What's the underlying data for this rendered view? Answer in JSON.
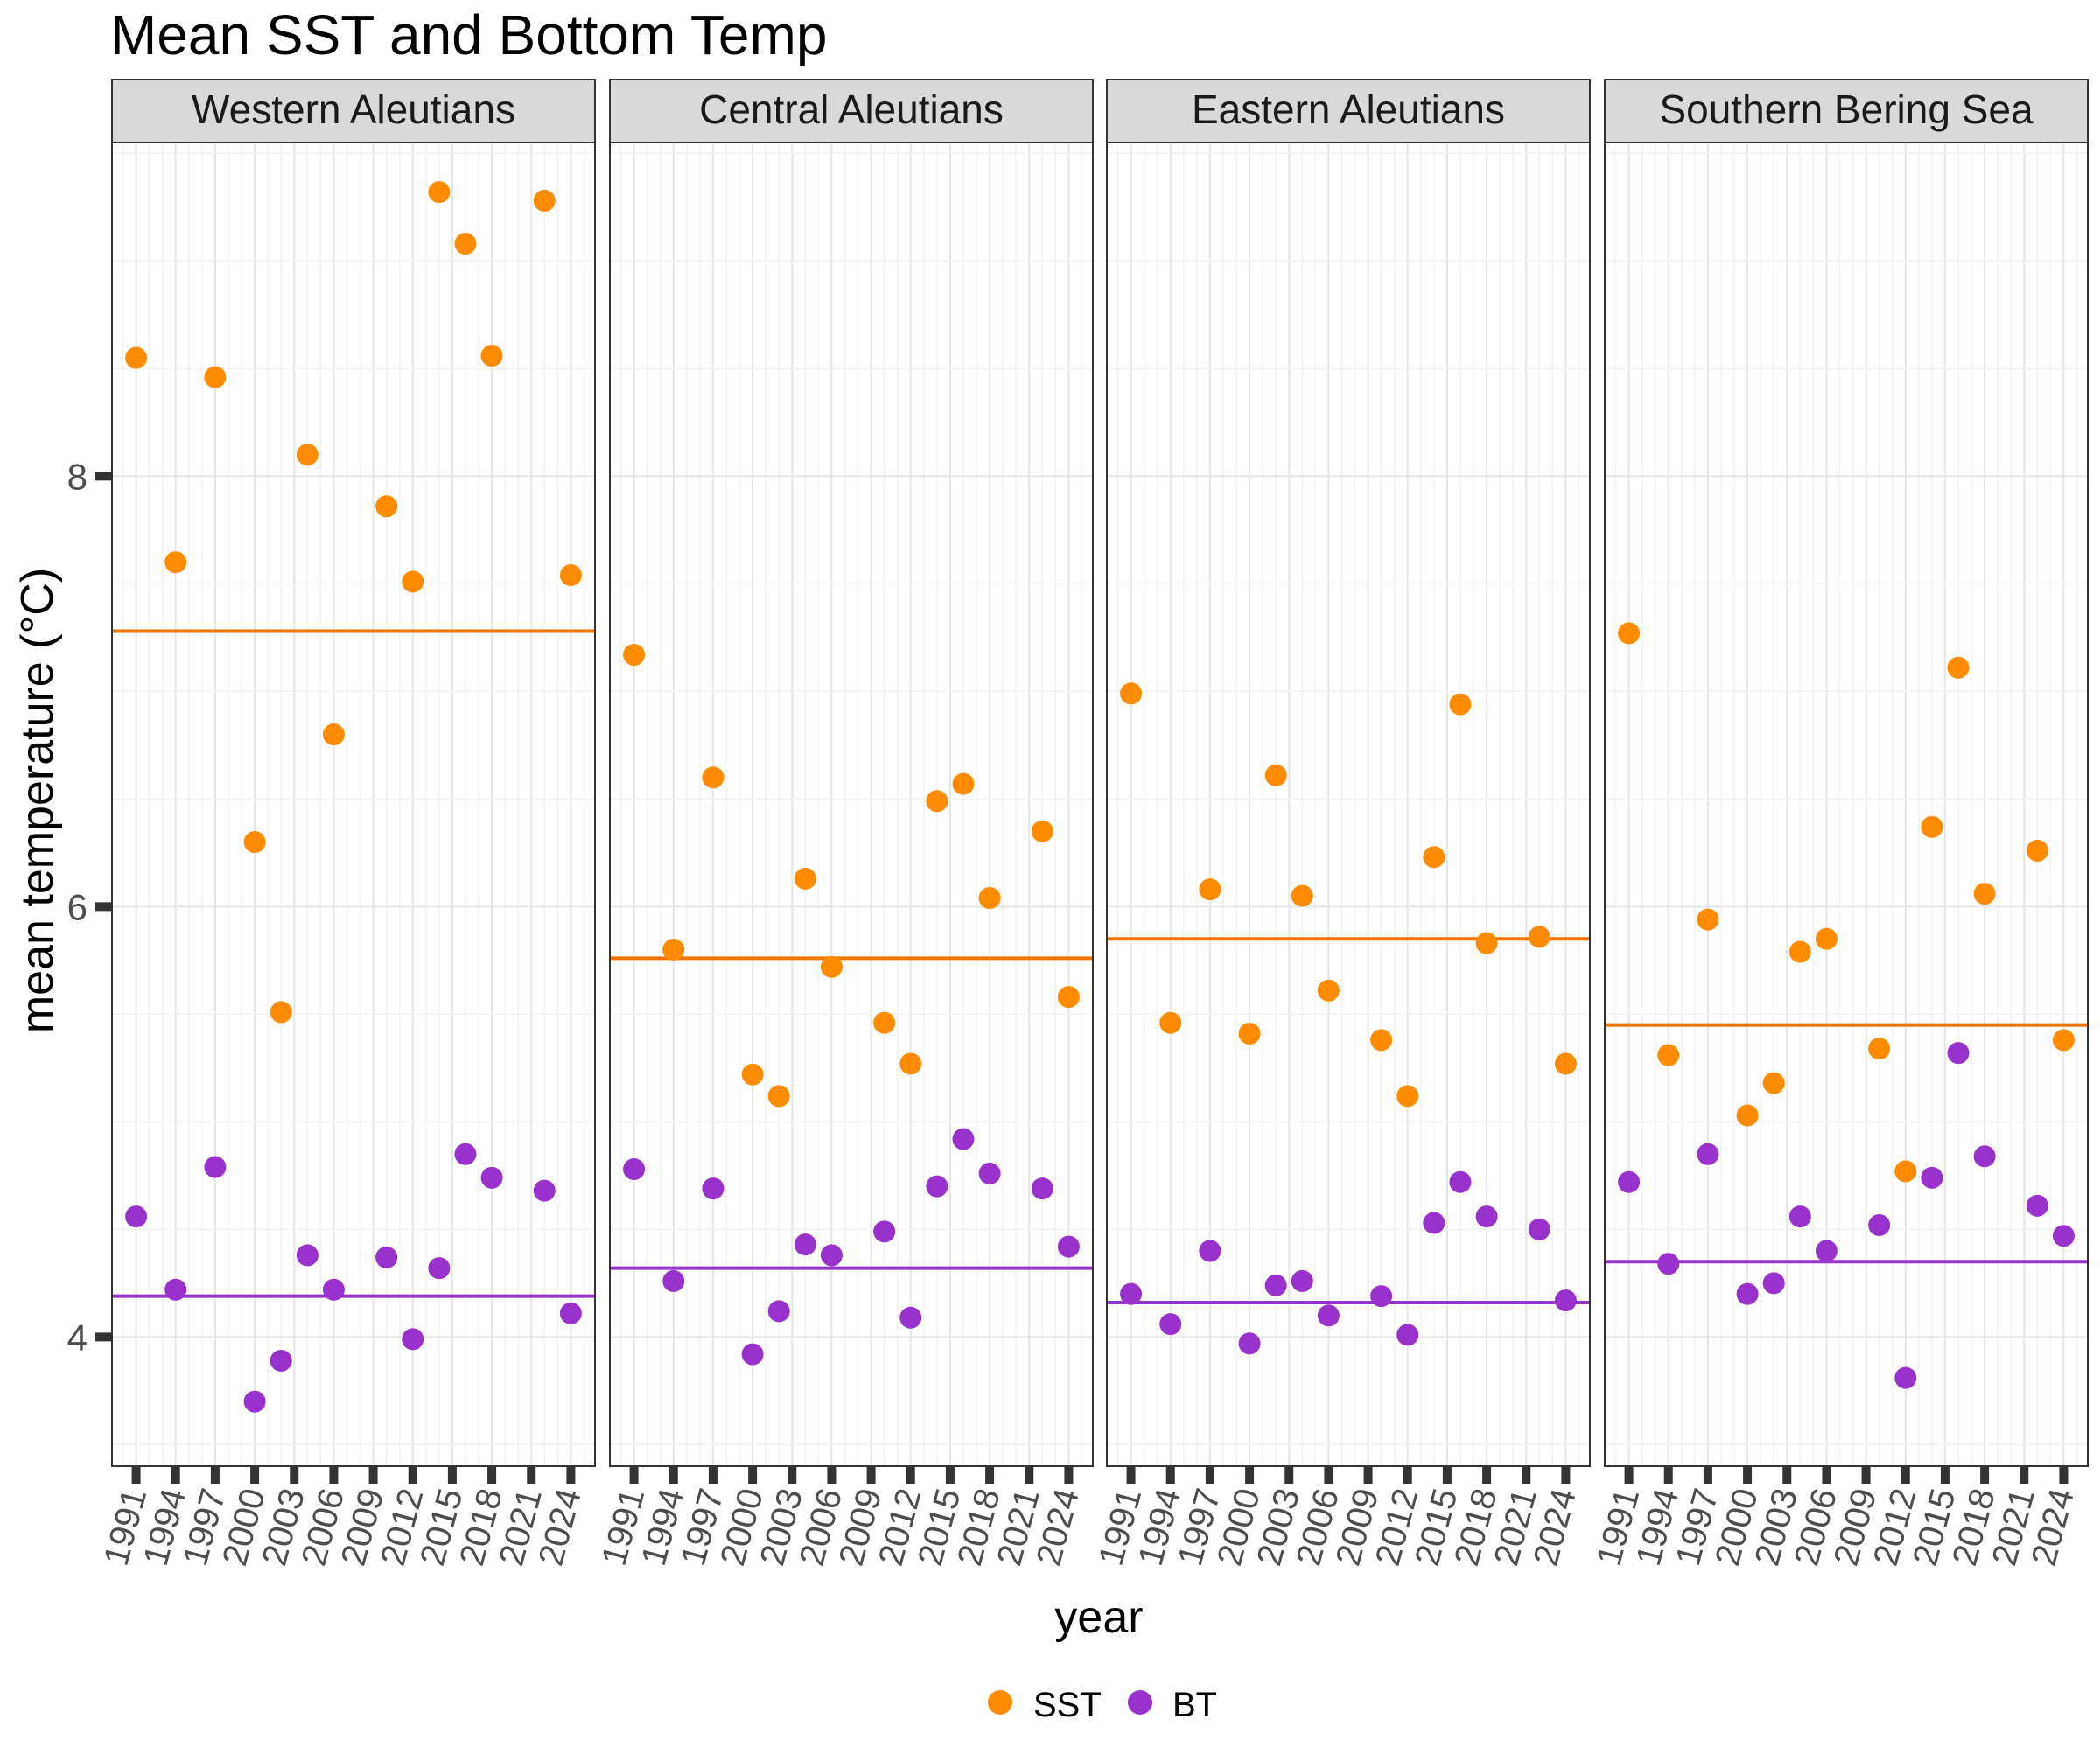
{
  "chart_data": {
    "type": "scatter",
    "title": "Mean SST and Bottom Temp",
    "xlabel": "year",
    "ylabel": "mean temperature (°C)",
    "ylim": [
      3.4,
      9.55
    ],
    "yticks": [
      4,
      6,
      8
    ],
    "xticks": [
      1991,
      1994,
      1997,
      2000,
      2003,
      2006,
      2009,
      2012,
      2015,
      2018,
      2021,
      2024
    ],
    "grid": true,
    "legend_position": "bottom",
    "colors": {
      "SST": "#ff8c00",
      "BT": "#9932cc",
      "SST_line": "#ee7600",
      "BT_line": "#9a32cd"
    },
    "legend": [
      {
        "key": "SST",
        "label": "SST"
      },
      {
        "key": "BT",
        "label": "BT"
      }
    ],
    "panels": [
      {
        "name": "Western Aleutians",
        "series": {
          "SST": [
            [
              1991,
              8.55
            ],
            [
              1994,
              7.6
            ],
            [
              1997,
              8.46
            ],
            [
              2000,
              6.3
            ],
            [
              2002,
              5.51
            ],
            [
              2004,
              8.1
            ],
            [
              2006,
              6.8
            ],
            [
              2010,
              7.86
            ],
            [
              2012,
              7.51
            ],
            [
              2014,
              9.32
            ],
            [
              2016,
              9.08
            ],
            [
              2018,
              8.56
            ],
            [
              2022,
              9.28
            ],
            [
              2024,
              7.54
            ]
          ],
          "BT": [
            [
              1991,
              4.56
            ],
            [
              1994,
              4.22
            ],
            [
              1997,
              4.79
            ],
            [
              2000,
              3.7
            ],
            [
              2002,
              3.89
            ],
            [
              2004,
              4.38
            ],
            [
              2006,
              4.22
            ],
            [
              2010,
              4.37
            ],
            [
              2012,
              3.99
            ],
            [
              2014,
              4.32
            ],
            [
              2016,
              4.85
            ],
            [
              2018,
              4.74
            ],
            [
              2022,
              4.68
            ],
            [
              2024,
              4.11
            ]
          ]
        },
        "means": {
          "SST": 7.28,
          "BT": 4.19
        }
      },
      {
        "name": "Central Aleutians",
        "series": {
          "SST": [
            [
              1991,
              7.17
            ],
            [
              1994,
              5.8
            ],
            [
              1997,
              6.6
            ],
            [
              2000,
              5.22
            ],
            [
              2002,
              5.12
            ],
            [
              2004,
              6.13
            ],
            [
              2006,
              5.72
            ],
            [
              2010,
              5.46
            ],
            [
              2012,
              5.27
            ],
            [
              2014,
              6.49
            ],
            [
              2016,
              6.57
            ],
            [
              2018,
              6.04
            ],
            [
              2022,
              6.35
            ],
            [
              2024,
              5.58
            ]
          ],
          "BT": [
            [
              1991,
              4.78
            ],
            [
              1994,
              4.26
            ],
            [
              1997,
              4.69
            ],
            [
              2000,
              3.92
            ],
            [
              2002,
              4.12
            ],
            [
              2004,
              4.43
            ],
            [
              2006,
              4.38
            ],
            [
              2010,
              4.49
            ],
            [
              2012,
              4.09
            ],
            [
              2014,
              4.7
            ],
            [
              2016,
              4.92
            ],
            [
              2018,
              4.76
            ],
            [
              2022,
              4.69
            ],
            [
              2024,
              4.42
            ]
          ]
        },
        "means": {
          "SST": 5.76,
          "BT": 4.32
        }
      },
      {
        "name": "Eastern Aleutians",
        "series": {
          "SST": [
            [
              1991,
              6.99
            ],
            [
              1994,
              5.46
            ],
            [
              1997,
              6.08
            ],
            [
              2000,
              5.41
            ],
            [
              2002,
              6.61
            ],
            [
              2004,
              6.05
            ],
            [
              2006,
              5.61
            ],
            [
              2010,
              5.38
            ],
            [
              2012,
              5.12
            ],
            [
              2014,
              6.23
            ],
            [
              2016,
              6.94
            ],
            [
              2018,
              5.83
            ],
            [
              2022,
              5.86
            ],
            [
              2024,
              5.27
            ]
          ],
          "BT": [
            [
              1991,
              4.2
            ],
            [
              1994,
              4.06
            ],
            [
              1997,
              4.4
            ],
            [
              2000,
              3.97
            ],
            [
              2002,
              4.24
            ],
            [
              2004,
              4.26
            ],
            [
              2006,
              4.1
            ],
            [
              2010,
              4.19
            ],
            [
              2012,
              4.01
            ],
            [
              2014,
              4.53
            ],
            [
              2016,
              4.72
            ],
            [
              2018,
              4.56
            ],
            [
              2022,
              4.5
            ],
            [
              2024,
              4.17
            ]
          ]
        },
        "means": {
          "SST": 5.85,
          "BT": 4.16
        }
      },
      {
        "name": "Southern Bering Sea",
        "series": {
          "SST": [
            [
              1991,
              7.27
            ],
            [
              1994,
              5.31
            ],
            [
              1997,
              5.94
            ],
            [
              2000,
              5.03
            ],
            [
              2002,
              5.18
            ],
            [
              2004,
              5.79
            ],
            [
              2006,
              5.85
            ],
            [
              2010,
              5.34
            ],
            [
              2012,
              4.77
            ],
            [
              2014,
              6.37
            ],
            [
              2016,
              7.11
            ],
            [
              2018,
              6.06
            ],
            [
              2022,
              6.26
            ],
            [
              2024,
              5.38
            ]
          ],
          "BT": [
            [
              1991,
              4.72
            ],
            [
              1994,
              4.34
            ],
            [
              1997,
              4.85
            ],
            [
              2000,
              4.2
            ],
            [
              2002,
              4.25
            ],
            [
              2004,
              4.56
            ],
            [
              2006,
              4.4
            ],
            [
              2010,
              4.52
            ],
            [
              2012,
              3.81
            ],
            [
              2014,
              4.74
            ],
            [
              2016,
              5.32
            ],
            [
              2018,
              4.84
            ],
            [
              2022,
              4.61
            ],
            [
              2024,
              4.47
            ]
          ]
        },
        "means": {
          "SST": 5.45,
          "BT": 4.35
        }
      }
    ]
  }
}
